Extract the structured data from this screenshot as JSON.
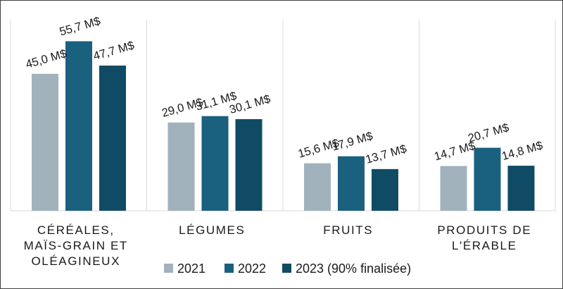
{
  "chart_data": {
    "type": "bar",
    "categories": [
      [
        "CÉRÉALES,",
        "MAÏS-GRAIN ET",
        "OLÉAGINEUX"
      ],
      [
        "LÉGUMES"
      ],
      [
        "FRUITS"
      ],
      [
        "PRODUITS DE",
        "L'ÉRABLE"
      ]
    ],
    "series": [
      {
        "name": "2021",
        "color": "#a2b2bd",
        "values": [
          45.0,
          29.0,
          15.6,
          14.7
        ],
        "labels": [
          "45,0 M$",
          "29,0 M$",
          "15,6 M$",
          "14,7 M$"
        ]
      },
      {
        "name": "2022",
        "color": "#1a607f",
        "values": [
          55.7,
          31.1,
          17.9,
          20.7
        ],
        "labels": [
          "55,7 M$",
          "31,1 M$",
          "17,9 M$",
          "20,7 M$"
        ]
      },
      {
        "name": "2023 (90% finalisée)",
        "color": "#104b65",
        "values": [
          47.7,
          30.1,
          13.7,
          14.8
        ],
        "labels": [
          "47,7 M$",
          "30,1 M$",
          "13,7 M$",
          "14,8 M$"
        ]
      }
    ],
    "ylim": [
      0,
      63
    ],
    "grid": "vertical separators",
    "legend_position": "bottom"
  }
}
